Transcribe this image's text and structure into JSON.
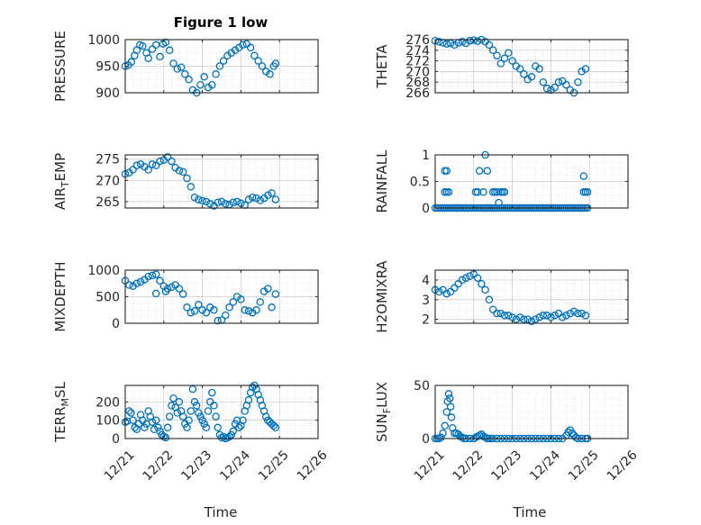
{
  "figure": {
    "title": "Figure 1 low",
    "xlabel": "Time"
  },
  "chart_data": [
    {
      "type": "scatter",
      "ylabel": "PRESSURE",
      "ylim": [
        900,
        1000
      ],
      "yticks": [
        900,
        950,
        1000
      ],
      "xlim": [
        0,
        5
      ],
      "xticks": [
        "12/21",
        "12/22",
        "12/23",
        "12/24",
        "12/25",
        "12/26"
      ],
      "grid": true,
      "series": [
        {
          "color": "#0072BD",
          "marker": "circle-open",
          "x": [
            0,
            0.08,
            0.16,
            0.24,
            0.3,
            0.38,
            0.45,
            0.55,
            0.6,
            0.7,
            0.8,
            0.9,
            0.98,
            1.05,
            1.15,
            1.25,
            1.35,
            1.45,
            1.55,
            1.65,
            1.75,
            1.85,
            1.95,
            2.05,
            2.15,
            2.25,
            2.35,
            2.45,
            2.55,
            2.65,
            2.75,
            2.85,
            2.95,
            3.05,
            3.15,
            3.25,
            3.35,
            3.45,
            3.55,
            3.65,
            3.75,
            3.85,
            3.9
          ],
          "y": [
            950,
            952,
            958,
            970,
            980,
            990,
            988,
            975,
            965,
            982,
            990,
            968,
            992,
            995,
            980,
            955,
            945,
            948,
            935,
            925,
            905,
            900,
            915,
            930,
            910,
            915,
            935,
            950,
            960,
            970,
            975,
            980,
            985,
            990,
            992,
            985,
            970,
            960,
            950,
            940,
            935,
            950,
            955
          ]
        }
      ]
    },
    {
      "type": "scatter",
      "ylabel": "THETA",
      "ylim": [
        266,
        276
      ],
      "yticks": [
        266,
        268,
        270,
        272,
        274,
        276
      ],
      "xlim": [
        0,
        5
      ],
      "xticks": [
        "12/21",
        "12/22",
        "12/23",
        "12/24",
        "12/25",
        "12/26"
      ],
      "grid": true,
      "series": [
        {
          "color": "#0072BD",
          "marker": "circle-open",
          "x": [
            0,
            0.1,
            0.2,
            0.3,
            0.4,
            0.5,
            0.6,
            0.7,
            0.8,
            0.9,
            1.0,
            1.1,
            1.2,
            1.3,
            1.4,
            1.5,
            1.6,
            1.7,
            1.8,
            1.9,
            2.0,
            2.1,
            2.2,
            2.3,
            2.4,
            2.5,
            2.6,
            2.7,
            2.8,
            2.9,
            3.0,
            3.1,
            3.2,
            3.3,
            3.4,
            3.5,
            3.6,
            3.7,
            3.8,
            3.9
          ],
          "y": [
            275.8,
            275.6,
            275.4,
            275.2,
            275.3,
            275.0,
            275.4,
            275.6,
            275.3,
            275.8,
            275.9,
            275.7,
            276.0,
            275.6,
            275.0,
            274.0,
            273.0,
            271.5,
            272.5,
            273.5,
            272.0,
            271.0,
            270.5,
            269.5,
            268.5,
            269.0,
            271.0,
            270.5,
            268.0,
            266.8,
            266.5,
            267.0,
            268.0,
            268.2,
            267.5,
            266.5,
            266.0,
            268.0,
            270.0,
            270.5
          ]
        }
      ]
    },
    {
      "type": "scatter",
      "ylabel": "AIR_TEMP",
      "ylim": [
        263.5,
        276
      ],
      "yticks": [
        265,
        270,
        275
      ],
      "xlim": [
        0,
        5
      ],
      "xticks": [
        "12/21",
        "12/22",
        "12/23",
        "12/24",
        "12/25",
        "12/26"
      ],
      "grid": true,
      "series": [
        {
          "color": "#0072BD",
          "marker": "circle-open",
          "x": [
            0,
            0.1,
            0.2,
            0.3,
            0.4,
            0.5,
            0.6,
            0.7,
            0.8,
            0.9,
            1.0,
            1.1,
            1.2,
            1.3,
            1.4,
            1.5,
            1.6,
            1.7,
            1.8,
            1.9,
            2.0,
            2.1,
            2.2,
            2.3,
            2.4,
            2.5,
            2.6,
            2.7,
            2.8,
            2.9,
            3.0,
            3.1,
            3.2,
            3.3,
            3.4,
            3.5,
            3.6,
            3.7,
            3.8,
            3.9
          ],
          "y": [
            271.5,
            271.8,
            272.5,
            273.5,
            273.8,
            273.2,
            272.5,
            273.8,
            273.5,
            274.5,
            274.8,
            275.5,
            274.5,
            273.0,
            272.3,
            272.0,
            270.5,
            268.5,
            266.0,
            265.5,
            265.2,
            265.0,
            264.5,
            264.0,
            264.8,
            265.0,
            264.5,
            264.3,
            264.8,
            265.0,
            264.6,
            264.2,
            265.5,
            266.0,
            265.8,
            265.3,
            265.8,
            266.5,
            267.0,
            265.5
          ]
        }
      ]
    },
    {
      "type": "scatter",
      "ylabel": "RAINFALL",
      "ylim": [
        0,
        1
      ],
      "yticks": [
        0,
        0.5,
        1
      ],
      "xlim": [
        0,
        5
      ],
      "xticks": [
        "12/21",
        "12/22",
        "12/23",
        "12/24",
        "12/25",
        "12/26"
      ],
      "grid": true,
      "series": [
        {
          "color": "#0072BD",
          "marker": "circle-open",
          "x": [
            0.25,
            0.3,
            0.25,
            0.3,
            0.35,
            1.05,
            1.1,
            1.15,
            1.25,
            1.3,
            1.35,
            1.5,
            1.55,
            1.6,
            1.65,
            1.7,
            1.75,
            1.8,
            3.85,
            3.9,
            3.95,
            3.85,
            0.55
          ],
          "y": [
            0.7,
            0.7,
            0.3,
            0.3,
            0.3,
            0.3,
            0.3,
            0.7,
            0.3,
            1.0,
            0.7,
            0.3,
            0.3,
            0.3,
            0.1,
            0.3,
            0.3,
            0.3,
            0.6,
            0.3,
            0.3,
            0.3,
            0.0
          ],
          "baseline": {
            "y": 0,
            "from": 0,
            "to": 3.95,
            "step": 0.05
          }
        }
      ]
    },
    {
      "type": "scatter",
      "ylabel": "MIXDEPTH",
      "ylim": [
        0,
        1000
      ],
      "yticks": [
        0,
        500,
        1000
      ],
      "xlim": [
        0,
        5
      ],
      "xticks": [
        "12/21",
        "12/22",
        "12/23",
        "12/24",
        "12/25",
        "12/26"
      ],
      "grid": true,
      "series": [
        {
          "color": "#0072BD",
          "marker": "circle-open",
          "x": [
            0,
            0.1,
            0.2,
            0.3,
            0.4,
            0.5,
            0.6,
            0.7,
            0.8,
            0.9,
            1.0,
            1.1,
            1.2,
            1.3,
            1.4,
            1.5,
            1.6,
            1.7,
            1.8,
            1.9,
            2.0,
            2.1,
            2.2,
            2.3,
            2.4,
            2.5,
            2.6,
            2.7,
            2.8,
            2.9,
            3.0,
            3.1,
            3.2,
            3.3,
            3.4,
            3.5,
            3.6,
            3.7,
            3.8,
            3.9,
            0.8,
            1.05
          ],
          "y": [
            800,
            720,
            700,
            750,
            780,
            820,
            880,
            900,
            560,
            800,
            700,
            650,
            680,
            720,
            650,
            550,
            300,
            200,
            230,
            350,
            250,
            200,
            300,
            250,
            50,
            60,
            150,
            300,
            400,
            500,
            450,
            250,
            230,
            200,
            250,
            400,
            600,
            650,
            300,
            550,
            920,
            600
          ]
        }
      ]
    },
    {
      "type": "scatter",
      "ylabel": "H2OMIXRA",
      "ylim": [
        1.8,
        4.5
      ],
      "yticks": [
        2,
        3,
        4
      ],
      "xlim": [
        0,
        5
      ],
      "xticks": [
        "12/21",
        "12/22",
        "12/23",
        "12/24",
        "12/25",
        "12/26"
      ],
      "grid": true,
      "series": [
        {
          "color": "#0072BD",
          "marker": "circle-open",
          "x": [
            0,
            0.1,
            0.2,
            0.3,
            0.4,
            0.5,
            0.6,
            0.7,
            0.8,
            0.9,
            1.0,
            1.1,
            1.2,
            1.3,
            1.4,
            1.5,
            1.6,
            1.7,
            1.8,
            1.9,
            2.0,
            2.1,
            2.2,
            2.3,
            2.4,
            2.5,
            2.6,
            2.7,
            2.8,
            2.9,
            3.0,
            3.1,
            3.2,
            3.3,
            3.4,
            3.5,
            3.6,
            3.7,
            3.8,
            3.9
          ],
          "y": [
            3.5,
            3.4,
            3.5,
            3.3,
            3.4,
            3.6,
            3.8,
            4.0,
            4.1,
            4.2,
            4.3,
            4.1,
            3.8,
            3.5,
            3.0,
            2.5,
            2.3,
            2.3,
            2.2,
            2.2,
            2.1,
            2.0,
            2.1,
            2.0,
            2.0,
            1.9,
            2.0,
            2.1,
            2.2,
            2.2,
            2.1,
            2.2,
            2.3,
            2.1,
            2.2,
            2.3,
            2.4,
            2.3,
            2.3,
            2.2
          ]
        }
      ]
    },
    {
      "type": "scatter",
      "ylabel": "TERR_MSL",
      "ylim": [
        0,
        290
      ],
      "yticks": [
        0,
        100,
        200
      ],
      "xlim": [
        0,
        5
      ],
      "xticks": [
        "12/21",
        "12/22",
        "12/23",
        "12/24",
        "12/25",
        "12/26"
      ],
      "grid": true,
      "series": [
        {
          "color": "#0072BD",
          "marker": "circle-open",
          "x": [
            0,
            0.05,
            0.1,
            0.15,
            0.2,
            0.25,
            0.3,
            0.35,
            0.4,
            0.45,
            0.5,
            0.55,
            0.6,
            0.65,
            0.7,
            0.75,
            0.8,
            0.85,
            0.9,
            0.95,
            1.0,
            1.05,
            1.1,
            1.15,
            1.2,
            1.25,
            1.3,
            1.35,
            1.4,
            1.45,
            1.5,
            1.55,
            1.6,
            1.65,
            1.7,
            1.75,
            1.8,
            1.85,
            1.9,
            1.95,
            2.0,
            2.05,
            2.1,
            2.15,
            2.2,
            2.25,
            2.3,
            2.35,
            2.4,
            2.45,
            2.5,
            2.55,
            2.6,
            2.65,
            2.7,
            2.75,
            2.8,
            2.85,
            2.9,
            2.95,
            3.0,
            3.05,
            3.1,
            3.15,
            3.2,
            3.25,
            3.3,
            3.35,
            3.4,
            3.45,
            3.5,
            3.55,
            3.6,
            3.65,
            3.7,
            3.75,
            3.8,
            3.85,
            3.9
          ],
          "y": [
            90,
            95,
            150,
            140,
            100,
            60,
            50,
            80,
            130,
            100,
            60,
            80,
            150,
            120,
            90,
            50,
            100,
            60,
            40,
            20,
            10,
            5,
            60,
            120,
            180,
            220,
            170,
            140,
            200,
            150,
            120,
            80,
            60,
            100,
            150,
            270,
            200,
            180,
            140,
            120,
            100,
            80,
            60,
            150,
            200,
            250,
            180,
            120,
            60,
            20,
            5,
            10,
            0,
            5,
            10,
            20,
            40,
            80,
            100,
            60,
            70,
            100,
            150,
            180,
            210,
            250,
            280,
            290,
            270,
            240,
            210,
            180,
            150,
            120,
            100,
            90,
            80,
            70,
            60
          ]
        }
      ]
    },
    {
      "type": "scatter",
      "ylabel": "SUN_FLUX",
      "ylim": [
        0,
        50
      ],
      "yticks": [
        0,
        50
      ],
      "xlim": [
        0,
        5
      ],
      "xticks": [
        "12/21",
        "12/22",
        "12/23",
        "12/24",
        "12/25",
        "12/26"
      ],
      "grid": true,
      "series": [
        {
          "color": "#0072BD",
          "marker": "circle-open",
          "x": [
            0,
            0.05,
            0.1,
            0.15,
            0.2,
            0.25,
            0.3,
            0.32,
            0.35,
            0.38,
            0.4,
            0.42,
            0.45,
            0.5,
            0.55,
            0.6,
            0.65,
            0.7,
            0.75,
            0.8,
            0.9,
            1.0,
            1.05,
            1.1,
            1.15,
            1.2,
            1.25,
            1.3,
            1.35,
            1.4,
            1.45,
            1.5,
            1.6,
            1.7,
            1.8,
            1.9,
            2.0,
            2.1,
            2.2,
            2.3,
            2.4,
            2.5,
            2.6,
            2.7,
            2.8,
            2.9,
            3.0,
            3.1,
            3.2,
            3.3,
            3.4,
            3.45,
            3.5,
            3.55,
            3.6,
            3.65,
            3.7,
            3.8,
            3.9,
            3.95
          ],
          "y": [
            0,
            0,
            0,
            1,
            5,
            12,
            25,
            35,
            42,
            38,
            30,
            20,
            10,
            5,
            5,
            4,
            2,
            1,
            0,
            0,
            0,
            0,
            1,
            2,
            3,
            4,
            2,
            1,
            0,
            0,
            0,
            0,
            0,
            0,
            0,
            0,
            0,
            0,
            0,
            0,
            0,
            0,
            0,
            0,
            0,
            0,
            0,
            0,
            0,
            0,
            3,
            6,
            8,
            5,
            3,
            1,
            0,
            0,
            0,
            0
          ]
        }
      ]
    }
  ]
}
